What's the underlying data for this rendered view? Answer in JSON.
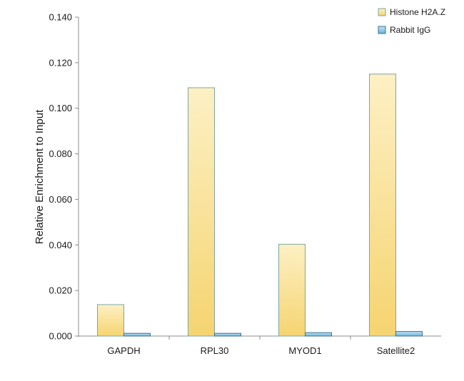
{
  "chart_data": {
    "type": "bar",
    "title": "",
    "xlabel": "",
    "ylabel": "Relative Enrichment to Input",
    "ylim": [
      0,
      0.14
    ],
    "yticks": [
      "0.000",
      "0.020",
      "0.040",
      "0.060",
      "0.080",
      "0.100",
      "0.120",
      "0.140"
    ],
    "ytick_values": [
      0,
      0.02,
      0.04,
      0.06,
      0.08,
      0.1,
      0.12,
      0.14
    ],
    "categories": [
      "GAPDH",
      "RPL30",
      "MYOD1",
      "Satellite2"
    ],
    "series": [
      {
        "name": "Histone H2A.Z",
        "values": [
          0.0138,
          0.109,
          0.0403,
          0.115
        ],
        "color_top": "#fdf0c4",
        "color_bottom": "#f5d470",
        "stroke": "#7aa7a3"
      },
      {
        "name": "Rabbit IgG",
        "values": [
          0.0012,
          0.0012,
          0.0015,
          0.002
        ],
        "color_top": "#bfe3f5",
        "color_bottom": "#6cb4dc",
        "stroke": "#3e6f8f"
      }
    ],
    "grid": false,
    "legend_position": "top-right"
  }
}
